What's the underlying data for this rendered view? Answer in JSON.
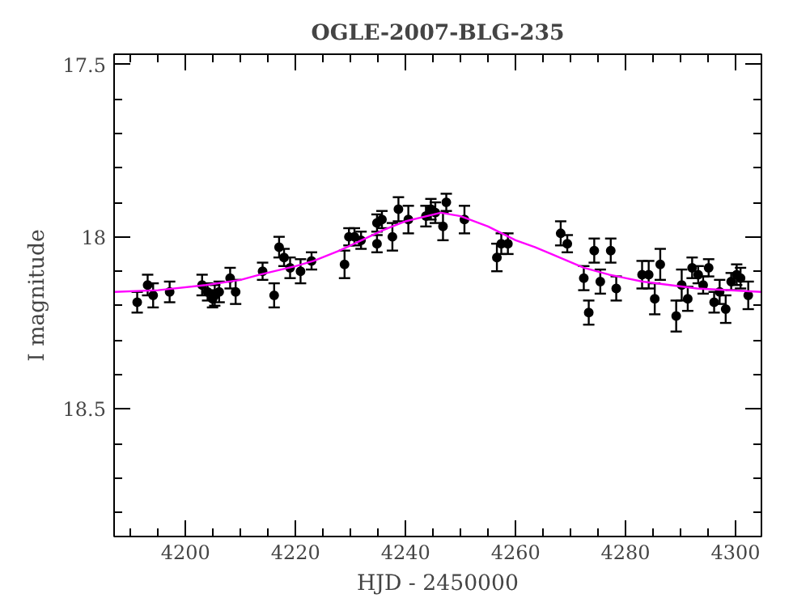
{
  "chart_data": {
    "type": "scatter",
    "title": "OGLE-2007-BLG-235",
    "xlabel": "HJD - 2450000",
    "ylabel": "I magnitude",
    "xlim": [
      4187,
      4304.7
    ],
    "ylim": [
      18.87,
      17.47
    ],
    "xticks": [
      {
        "value": 4190,
        "label": null
      },
      {
        "value": 4195,
        "label": null
      },
      4200,
      {
        "value": 4205,
        "label": null
      },
      {
        "value": 4210,
        "label": null
      },
      {
        "value": 4215,
        "label": null
      },
      4220,
      {
        "value": 4225,
        "label": null
      },
      {
        "value": 4230,
        "label": null
      },
      {
        "value": 4235,
        "label": null
      },
      4240,
      {
        "value": 4245,
        "label": null
      },
      {
        "value": 4250,
        "label": null
      },
      {
        "value": 4255,
        "label": null
      },
      4260,
      {
        "value": 4265,
        "label": null
      },
      {
        "value": 4270,
        "label": null
      },
      {
        "value": 4275,
        "label": null
      },
      4280,
      {
        "value": 4285,
        "label": null
      },
      {
        "value": 4290,
        "label": null
      },
      {
        "value": 4295,
        "label": null
      },
      4300
    ],
    "yticks": [
      17.5,
      {
        "value": 17.6,
        "label": null
      },
      {
        "value": 17.7,
        "label": null
      },
      {
        "value": 17.8,
        "label": null
      },
      {
        "value": 17.9,
        "label": null
      },
      18,
      {
        "value": 18.1,
        "label": null
      },
      {
        "value": 18.2,
        "label": null
      },
      {
        "value": 18.3,
        "label": null
      },
      {
        "value": 18.4,
        "label": null
      },
      18.5,
      {
        "value": 18.6,
        "label": null
      },
      {
        "value": 18.7,
        "label": null
      },
      {
        "value": 18.8,
        "label": null
      }
    ],
    "grid": false,
    "series": [
      {
        "marker": "circle",
        "color": "#000000",
        "x": [
          4191.2,
          4193.1,
          4194.1,
          4197.1,
          4203.0,
          4204.0,
          4204.9,
          4205.3,
          4206.1,
          4208.1,
          4209.1,
          4214.0,
          4216.1,
          4217.0,
          4217.9,
          4219.0,
          4220.9,
          4222.9,
          4228.9,
          4229.7,
          4230.7,
          4231.9,
          4234.8,
          4234.8,
          4235.7,
          4237.6,
          4238.7,
          4240.5,
          4243.7,
          4244.6,
          4245.4,
          4246.8,
          4247.4,
          4250.7,
          4256.6,
          4257.4,
          4258.6,
          4268.2,
          4269.4,
          4272.4,
          4273.3,
          4274.3,
          4275.4,
          4277.3,
          4278.3,
          4283.0,
          4284.2,
          4285.3,
          4286.3,
          4289.2,
          4290.2,
          4291.3,
          4292.1,
          4293.2,
          4294.1,
          4295.1,
          4296.1,
          4297.1,
          4298.2,
          4299.2,
          4300.2,
          4300.9,
          4302.3
        ],
        "values": [
          18.19,
          18.14,
          18.17,
          18.16,
          18.14,
          18.16,
          18.18,
          18.17,
          18.16,
          18.12,
          18.16,
          18.1,
          18.17,
          18.03,
          18.06,
          18.09,
          18.1,
          18.07,
          18.08,
          18.0,
          18.0,
          18.01,
          18.02,
          17.96,
          17.95,
          18.0,
          17.92,
          17.95,
          17.94,
          17.92,
          17.93,
          17.97,
          17.9,
          17.95,
          18.06,
          18.02,
          18.02,
          17.99,
          18.02,
          18.12,
          18.22,
          18.04,
          18.13,
          18.04,
          18.15,
          18.11,
          18.11,
          18.18,
          18.08,
          18.23,
          18.14,
          18.18,
          18.09,
          18.11,
          18.14,
          18.09,
          18.19,
          18.16,
          18.21,
          18.13,
          18.11,
          18.12,
          18.17
        ],
        "errors": [
          0.03,
          0.03,
          0.035,
          0.03,
          0.03,
          0.025,
          0.025,
          0.03,
          0.03,
          0.03,
          0.035,
          0.025,
          0.035,
          0.03,
          0.025,
          0.03,
          0.035,
          0.025,
          0.04,
          0.025,
          0.025,
          0.025,
          0.025,
          0.025,
          0.025,
          0.04,
          0.035,
          0.04,
          0.03,
          0.03,
          0.03,
          0.04,
          0.025,
          0.04,
          0.04,
          0.03,
          0.03,
          0.035,
          0.025,
          0.035,
          0.035,
          0.035,
          0.035,
          0.035,
          0.035,
          0.04,
          0.04,
          0.045,
          0.045,
          0.045,
          0.045,
          0.035,
          0.03,
          0.025,
          0.025,
          0.025,
          0.03,
          0.035,
          0.04,
          0.025,
          0.03,
          0.03,
          0.04
        ]
      },
      {
        "type": "line",
        "color": "#ff00ff",
        "x": [
          4187,
          4195,
          4203.7,
          4210,
          4213.5,
          4220,
          4223.3,
          4228,
          4232,
          4236,
          4240,
          4246.4,
          4250,
          4255,
          4260,
          4263.5,
          4266.5,
          4272.4,
          4277,
          4283.1,
          4293,
          4304.7
        ],
        "values": [
          18.16,
          18.155,
          18.14,
          18.125,
          18.11,
          18.085,
          18.07,
          18.04,
          18.01,
          17.98,
          17.955,
          17.93,
          17.94,
          17.97,
          18.01,
          18.03,
          18.05,
          18.09,
          18.11,
          18.13,
          18.15,
          18.16
        ]
      }
    ]
  }
}
